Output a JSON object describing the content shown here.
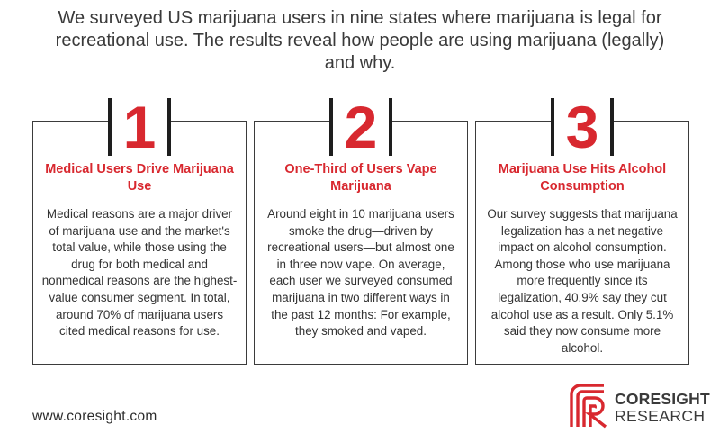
{
  "intro": "We surveyed US marijuana users in nine states where marijuana is legal for recreational use. The results reveal how people are using marijuana (legally) and why.",
  "cards": [
    {
      "number": "1",
      "title": "Medical Users Drive Marijuana Use",
      "body": "Medical reasons are a major driver of marijuana use and the market's total value, while those using the drug for both medical and nonmedical reasons are the highest-value consumer segment. In total, around 70% of marijuana users cited medical reasons for use."
    },
    {
      "number": "2",
      "title": "One-Third of Users Vape Marijuana",
      "body": "Around eight in 10 marijuana users smoke the drug—driven by recreational users—but almost one in three now vape. On average, each user we surveyed consumed marijuana in two different ways in the past 12 months: For example, they smoked and vaped."
    },
    {
      "number": "3",
      "title": "Marijuana Use Hits Alcohol Consumption",
      "body": "Our survey suggests that marijuana legalization has a net negative impact on alcohol consumption. Among those who use marijuana more frequently since its legalization, 40.9% say they cut alcohol use as a result. Only 5.1% said they now consume more alcohol."
    }
  ],
  "footer": {
    "website": "www.coresight.com"
  },
  "logo": {
    "line1": "CORESIGHT",
    "line2": "RESEARCH",
    "icon": "coresight-c-mark-icon"
  },
  "colors": {
    "accent_red": "#d8282f",
    "text_dark": "#333333",
    "border": "#3b3b3b"
  }
}
